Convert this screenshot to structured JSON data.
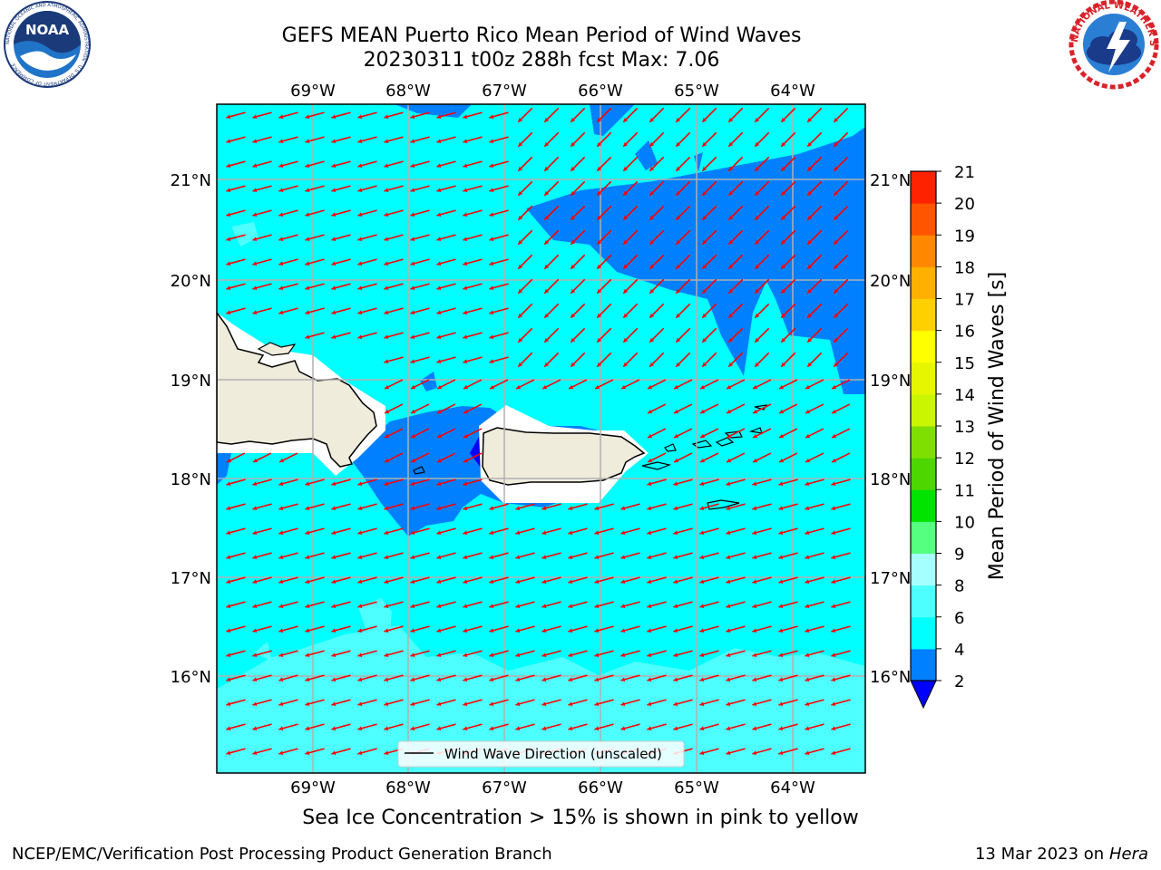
{
  "title": {
    "line1": "GEFS MEAN Puerto Rico Mean Period of Wind Waves",
    "line2": "20230311 t00z 288h fcst   Max: 7.06"
  },
  "logos": {
    "left": {
      "name": "noaa-logo",
      "text": "NOAA",
      "ring_text": "NATIONAL OCEANIC AND ATMOSPHERIC ADMINISTRATION · U.S. DEPARTMENT OF COMMERCE"
    },
    "right": {
      "name": "nws-logo",
      "ring_text": "NATIONAL WEATHER SERVICE"
    }
  },
  "map": {
    "lon_labels": [
      "69°W",
      "68°W",
      "67°W",
      "66°W",
      "65°W",
      "64°W"
    ],
    "lat_labels": [
      "21°N",
      "20°N",
      "19°N",
      "18°N",
      "17°N",
      "16°N"
    ],
    "legend_label": "Wind Wave Direction (unscaled)",
    "colors": {
      "ocean_light": "#00ffff",
      "ocean_mid": "#4dffff",
      "ocean_dark": "#0080ff",
      "land": "#efecdc",
      "arrow": "#ff0000",
      "grid": "#b0b0b0"
    }
  },
  "colorbar": {
    "label": "Mean Period of Wind Waves [s]",
    "ticks": [
      "2",
      "4",
      "6",
      "8",
      "9",
      "10",
      "11",
      "12",
      "13",
      "14",
      "15",
      "16",
      "17",
      "18",
      "19",
      "20",
      "21"
    ],
    "colors": [
      "#0080ff",
      "#00ffff",
      "#4dffff",
      "#a6ffff",
      "#55ff80",
      "#00e400",
      "#4dd600",
      "#7fdf00",
      "#c9f600",
      "#e6f500",
      "#ffff00",
      "#ffd000",
      "#ffb000",
      "#ff8800",
      "#ff5500",
      "#ff2200"
    ],
    "extend_color": "#0000ff"
  },
  "footer": {
    "sea_ice_note": "Sea Ice Concentration > 15% is shown in pink to yellow",
    "branch": "NCEP/EMC/Verification Post Processing Product Generation Branch",
    "date": "13 Mar 2023 on",
    "machine": "Hera"
  }
}
